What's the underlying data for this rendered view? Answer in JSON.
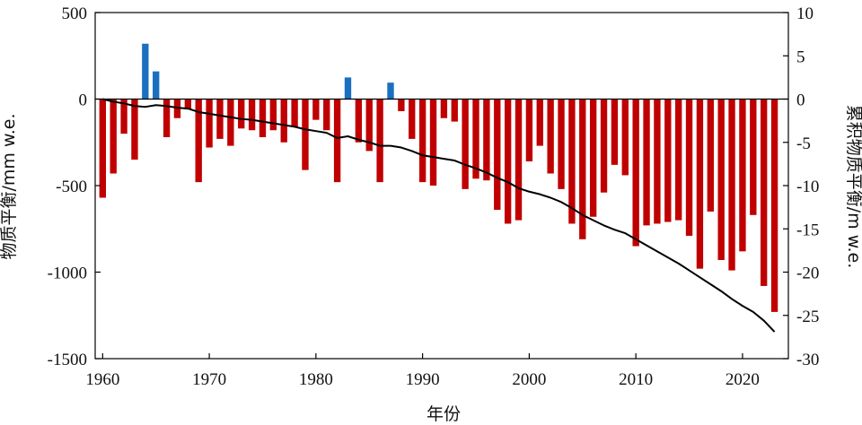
{
  "chart_data": {
    "type": "bar+line",
    "xlabel": "年份",
    "ylabel_left": "物质平衡/mm w.e.",
    "ylabel_right": "累积物质平衡/m w.e.",
    "xlim": [
      1959.3,
      2024.3
    ],
    "ylim_left": [
      -1500,
      500
    ],
    "ylim_right": [
      -30,
      10
    ],
    "xticks": [
      1960,
      1970,
      1980,
      1990,
      2000,
      2010,
      2020
    ],
    "yticks_left": [
      500,
      0,
      -500,
      -1000,
      -1500
    ],
    "yticks_right": [
      10,
      5,
      0,
      -5,
      -10,
      -15,
      -20,
      -25,
      -30
    ],
    "colors": {
      "positive": "#1a6fc1",
      "negative": "#c00000",
      "line": "#000000"
    },
    "series": [
      {
        "name": "物质平衡 (mm w.e.)",
        "axis": "left",
        "kind": "bar",
        "years": [
          1960,
          1961,
          1962,
          1963,
          1964,
          1965,
          1966,
          1967,
          1968,
          1969,
          1970,
          1971,
          1972,
          1973,
          1974,
          1975,
          1976,
          1977,
          1978,
          1979,
          1980,
          1981,
          1982,
          1983,
          1984,
          1985,
          1986,
          1987,
          1988,
          1989,
          1990,
          1991,
          1992,
          1993,
          1994,
          1995,
          1996,
          1997,
          1998,
          1999,
          2000,
          2001,
          2002,
          2003,
          2004,
          2005,
          2006,
          2007,
          2008,
          2009,
          2010,
          2011,
          2012,
          2013,
          2014,
          2015,
          2016,
          2017,
          2018,
          2019,
          2020,
          2021,
          2022,
          2023
        ],
        "values": [
          -570,
          -430,
          -200,
          -350,
          320,
          160,
          -220,
          -110,
          -60,
          -480,
          -280,
          -230,
          -270,
          -170,
          -180,
          -220,
          -180,
          -250,
          -160,
          -410,
          -120,
          -180,
          -480,
          125,
          -250,
          -300,
          -480,
          95,
          -70,
          -230,
          -480,
          -500,
          -110,
          -130,
          -520,
          -460,
          -470,
          -640,
          -720,
          -700,
          -360,
          -270,
          -430,
          -520,
          -720,
          -810,
          -680,
          -540,
          -380,
          -440,
          -850,
          -730,
          -720,
          -710,
          -700,
          -790,
          -980,
          -650,
          -930,
          -990,
          -880,
          -670,
          -1080,
          -1230
        ]
      },
      {
        "name": "累积物质平衡 (m w.e.)",
        "axis": "right",
        "kind": "line",
        "years": [
          1960,
          1961,
          1962,
          1963,
          1964,
          1965,
          1966,
          1967,
          1968,
          1969,
          1970,
          1971,
          1972,
          1973,
          1974,
          1975,
          1976,
          1977,
          1978,
          1979,
          1980,
          1981,
          1982,
          1983,
          1984,
          1985,
          1986,
          1987,
          1988,
          1989,
          1990,
          1991,
          1992,
          1993,
          1994,
          1995,
          1996,
          1997,
          1998,
          1999,
          2000,
          2001,
          2002,
          2003,
          2004,
          2005,
          2006,
          2007,
          2008,
          2009,
          2010,
          2011,
          2012,
          2013,
          2014,
          2015,
          2016,
          2017,
          2018,
          2019,
          2020,
          2021,
          2022,
          2023
        ],
        "values": [
          0,
          -0.3,
          -0.5,
          -0.8,
          -0.9,
          -0.7,
          -0.8,
          -1.0,
          -1.1,
          -1.5,
          -1.7,
          -1.9,
          -2.1,
          -2.3,
          -2.4,
          -2.6,
          -2.8,
          -3.0,
          -3.2,
          -3.5,
          -3.7,
          -3.9,
          -4.5,
          -4.3,
          -4.7,
          -5.0,
          -5.4,
          -5.4,
          -5.6,
          -6.0,
          -6.5,
          -6.7,
          -6.9,
          -7.1,
          -7.6,
          -8.0,
          -8.5,
          -9.1,
          -9.6,
          -10.3,
          -10.7,
          -11.0,
          -11.4,
          -11.9,
          -12.6,
          -13.4,
          -14.0,
          -14.6,
          -15.1,
          -15.5,
          -16.2,
          -16.9,
          -17.6,
          -18.3,
          -19.0,
          -19.8,
          -20.6,
          -21.4,
          -22.2,
          -23.1,
          -23.9,
          -24.6,
          -25.6,
          -26.9
        ]
      }
    ]
  }
}
